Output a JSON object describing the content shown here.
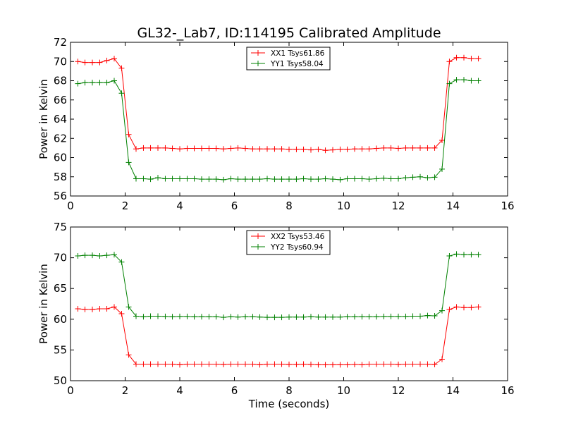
{
  "figure": {
    "title": "GL32-_Lab7, ID:114195 Calibrated Amplitude",
    "xlabel": "Time (seconds)"
  },
  "colors": {
    "red": "#ff0000",
    "green": "#008000",
    "axes": "#000000",
    "background": "#ffffff"
  },
  "chart_data": [
    {
      "type": "line",
      "title": "GL32-_Lab7, ID:114195 Calibrated Amplitude",
      "xlabel": "",
      "ylabel": "Power in Kelvin",
      "xlim": [
        0,
        16
      ],
      "ylim": [
        56,
        72
      ],
      "xticks": [
        "0",
        "2",
        "4",
        "6",
        "8",
        "10",
        "12",
        "14",
        "16"
      ],
      "yticks": [
        "56",
        "58",
        "60",
        "62",
        "64",
        "66",
        "68",
        "70",
        "72"
      ],
      "grid": false,
      "legend_position": "top-center",
      "x": [
        0.27,
        0.53,
        0.8,
        1.07,
        1.33,
        1.6,
        1.87,
        2.13,
        2.4,
        2.67,
        2.93,
        3.2,
        3.47,
        3.73,
        4.0,
        4.27,
        4.53,
        4.8,
        5.07,
        5.33,
        5.6,
        5.87,
        6.13,
        6.4,
        6.67,
        6.93,
        7.2,
        7.47,
        7.73,
        8.0,
        8.27,
        8.53,
        8.8,
        9.07,
        9.33,
        9.6,
        9.87,
        10.13,
        10.4,
        10.67,
        10.93,
        11.2,
        11.47,
        11.73,
        12.0,
        12.27,
        12.53,
        12.8,
        13.07,
        13.33,
        13.6,
        13.87,
        14.13,
        14.4,
        14.67,
        14.93
      ],
      "series": [
        {
          "name": "XX1 Tsys61.86",
          "color": "#ff0000",
          "values": [
            70.0,
            69.9,
            69.9,
            69.9,
            70.1,
            70.3,
            69.3,
            62.4,
            60.9,
            61.0,
            61.0,
            61.0,
            61.0,
            60.95,
            60.9,
            60.95,
            60.95,
            60.95,
            60.95,
            60.95,
            60.9,
            60.95,
            61.0,
            60.95,
            60.9,
            60.9,
            60.9,
            60.9,
            60.9,
            60.85,
            60.85,
            60.85,
            60.8,
            60.85,
            60.75,
            60.8,
            60.85,
            60.85,
            60.9,
            60.9,
            60.9,
            60.95,
            61.0,
            61.0,
            60.95,
            61.0,
            61.0,
            61.0,
            61.0,
            61.0,
            61.8,
            70.0,
            70.4,
            70.4,
            70.3,
            70.3
          ]
        },
        {
          "name": "YY1 Tsys58.04",
          "color": "#008000",
          "values": [
            67.7,
            67.8,
            67.8,
            67.8,
            67.8,
            68.0,
            66.7,
            59.5,
            57.8,
            57.8,
            57.75,
            57.9,
            57.8,
            57.8,
            57.8,
            57.8,
            57.8,
            57.75,
            57.75,
            57.75,
            57.7,
            57.8,
            57.75,
            57.75,
            57.75,
            57.75,
            57.8,
            57.75,
            57.75,
            57.75,
            57.75,
            57.8,
            57.75,
            57.75,
            57.8,
            57.75,
            57.7,
            57.8,
            57.8,
            57.8,
            57.75,
            57.8,
            57.85,
            57.8,
            57.8,
            57.9,
            57.95,
            58.0,
            57.9,
            57.95,
            58.8,
            67.7,
            68.1,
            68.1,
            68.0,
            68.0
          ]
        }
      ]
    },
    {
      "type": "line",
      "title": "",
      "xlabel": "Time (seconds)",
      "ylabel": "Power in Kelvin",
      "xlim": [
        0,
        16
      ],
      "ylim": [
        50,
        75
      ],
      "xticks": [
        "0",
        "2",
        "4",
        "6",
        "8",
        "10",
        "12",
        "14",
        "16"
      ],
      "yticks": [
        "50",
        "55",
        "60",
        "65",
        "70",
        "75"
      ],
      "grid": false,
      "legend_position": "top-center",
      "x": [
        0.27,
        0.53,
        0.8,
        1.07,
        1.33,
        1.6,
        1.87,
        2.13,
        2.4,
        2.67,
        2.93,
        3.2,
        3.47,
        3.73,
        4.0,
        4.27,
        4.53,
        4.8,
        5.07,
        5.33,
        5.6,
        5.87,
        6.13,
        6.4,
        6.67,
        6.93,
        7.2,
        7.47,
        7.73,
        8.0,
        8.27,
        8.53,
        8.8,
        9.07,
        9.33,
        9.6,
        9.87,
        10.13,
        10.4,
        10.67,
        10.93,
        11.2,
        11.47,
        11.73,
        12.0,
        12.27,
        12.53,
        12.8,
        13.07,
        13.33,
        13.6,
        13.87,
        14.13,
        14.4,
        14.67,
        14.93
      ],
      "series": [
        {
          "name": "XX2 Tsys53.46",
          "color": "#ff0000",
          "values": [
            61.7,
            61.6,
            61.6,
            61.7,
            61.7,
            62.0,
            60.9,
            54.2,
            52.7,
            52.7,
            52.7,
            52.7,
            52.7,
            52.7,
            52.6,
            52.7,
            52.7,
            52.7,
            52.7,
            52.7,
            52.65,
            52.7,
            52.7,
            52.7,
            52.7,
            52.6,
            52.7,
            52.7,
            52.7,
            52.65,
            52.65,
            52.7,
            52.65,
            52.6,
            52.6,
            52.6,
            52.6,
            52.6,
            52.65,
            52.6,
            52.7,
            52.7,
            52.7,
            52.7,
            52.65,
            52.7,
            52.7,
            52.7,
            52.7,
            52.65,
            53.5,
            61.6,
            62.0,
            61.9,
            61.9,
            62.0
          ]
        },
        {
          "name": "YY2 Tsys60.94",
          "color": "#008000",
          "values": [
            70.3,
            70.4,
            70.4,
            70.3,
            70.4,
            70.5,
            69.3,
            62.0,
            60.5,
            60.4,
            60.5,
            60.5,
            60.45,
            60.4,
            60.45,
            60.45,
            60.4,
            60.4,
            60.4,
            60.4,
            60.3,
            60.4,
            60.35,
            60.4,
            60.4,
            60.35,
            60.3,
            60.3,
            60.3,
            60.35,
            60.35,
            60.35,
            60.4,
            60.35,
            60.35,
            60.35,
            60.35,
            60.4,
            60.4,
            60.4,
            60.4,
            60.4,
            60.45,
            60.45,
            60.45,
            60.45,
            60.5,
            60.5,
            60.6,
            60.55,
            61.4,
            70.3,
            70.6,
            70.5,
            70.5,
            70.5
          ]
        }
      ]
    }
  ]
}
